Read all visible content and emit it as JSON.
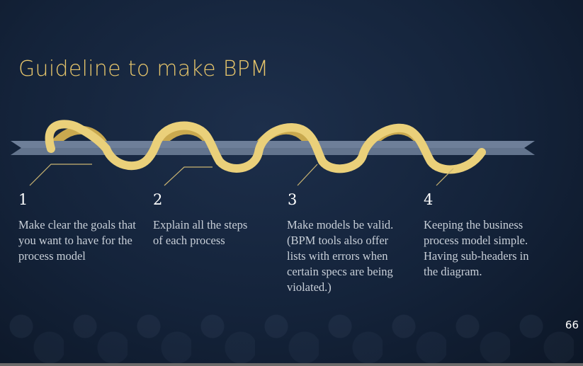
{
  "slide": {
    "title": "Guideline to make BPM",
    "page_number": "66"
  },
  "steps": [
    {
      "number": "1",
      "text": "Make clear the goals that you want to have for the process model"
    },
    {
      "number": "2",
      "text": "Explain all the steps of each process"
    },
    {
      "number": "3",
      "text": "Make models be valid. (BPM tools also offer lists with errors when certain specs are being violated.)"
    },
    {
      "number": "4",
      "text": "Keeping the business process model simple. Having sub-headers in the diagram."
    }
  ],
  "colors": {
    "accent_gold": "#e6c56b",
    "band_gray": "#6e7f99",
    "leader_line": "#c9b472"
  }
}
